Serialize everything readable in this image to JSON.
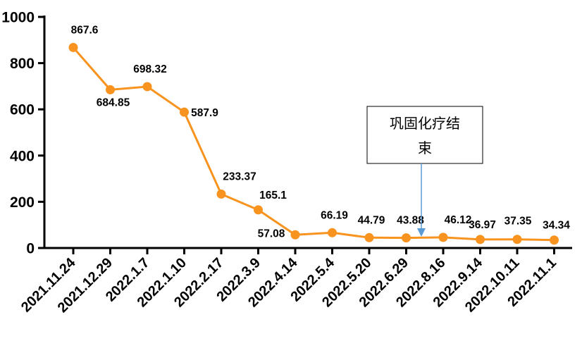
{
  "chart_data": {
    "type": "line",
    "title": "",
    "xlabel": "",
    "ylabel": "",
    "ylim": [
      0,
      1000
    ],
    "yticks": [
      0,
      200,
      400,
      600,
      800,
      1000
    ],
    "grid": false,
    "categories": [
      "2021.11.24",
      "2021.12.29",
      "2022.1.7",
      "2022.1.10",
      "2022.2.17",
      "2022.3.9",
      "2022.4.14",
      "2022.5.4",
      "2022.5.20",
      "2022.6.29",
      "2022.8.16",
      "2022.9.14",
      "2022.10.11",
      "2022.11.1"
    ],
    "series": [
      {
        "values": [
          867.6,
          684.85,
          698.32,
          587.9,
          233.37,
          165.1,
          57.08,
          66.19,
          44.79,
          43.88,
          46.12,
          36.97,
          37.35,
          34.34
        ],
        "labels": [
          "867.6",
          "684.85",
          "698.32",
          "587.9",
          "233.37",
          "165.1",
          "57.08",
          "66.19",
          "44.79",
          "43.88",
          "46.12",
          "36.97",
          "37.35",
          "34.34"
        ],
        "color": "#F7931E"
      }
    ],
    "annotation": {
      "text_line1": "巩固化疗结",
      "text_line2": "束",
      "arrow_color": "#5B9BD5",
      "between_categories": [
        "2022.6.29",
        "2022.8.16"
      ]
    }
  }
}
